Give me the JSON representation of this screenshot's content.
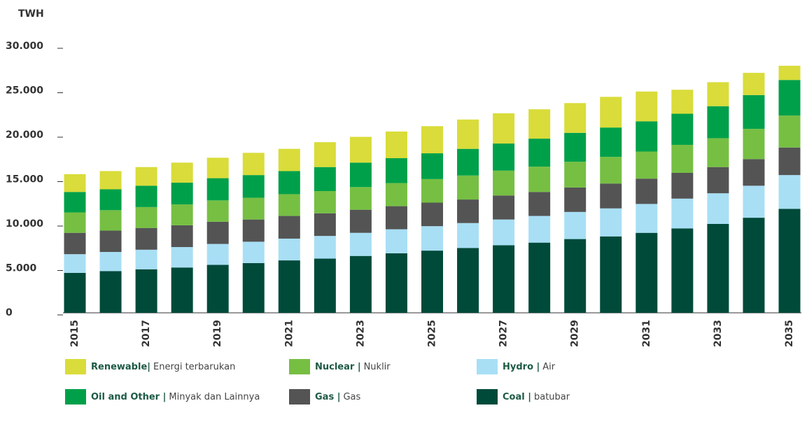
{
  "chart_data": {
    "type": "stacked_bar",
    "y_label": "TWH",
    "categories": [
      "2015",
      null,
      "2017",
      null,
      "2019",
      null,
      "2021",
      null,
      "2023",
      null,
      "2025",
      null,
      "2027",
      null,
      "2029",
      null,
      "2031",
      null,
      "2033",
      null,
      "2035"
    ],
    "series": [
      {
        "name": "Coal |",
        "name_local": "batubar",
        "color": "#004a3a",
        "values": [
          4500,
          4700,
          4900,
          5100,
          5400,
          5600,
          5900,
          6100,
          6400,
          6700,
          7000,
          7300,
          7600,
          7900,
          8300,
          8600,
          9000,
          9500,
          10000,
          10700,
          11700
        ]
      },
      {
        "name": "Hydro |",
        "name_local": "Air",
        "color": "#a8dff5",
        "values": [
          2100,
          2150,
          2200,
          2300,
          2350,
          2400,
          2450,
          2550,
          2600,
          2700,
          2750,
          2800,
          2900,
          3000,
          3050,
          3150,
          3250,
          3350,
          3450,
          3600,
          3800
        ]
      },
      {
        "name": "Gas |",
        "name_local": "Gas",
        "color": "#545454",
        "values": [
          2400,
          2400,
          2450,
          2450,
          2500,
          2500,
          2550,
          2550,
          2600,
          2600,
          2650,
          2650,
          2700,
          2700,
          2750,
          2800,
          2850,
          2900,
          2950,
          3000,
          3100
        ]
      },
      {
        "name": "Nuclear |",
        "name_local": "Nuklir",
        "color": "#76bf43",
        "values": [
          2300,
          2300,
          2350,
          2350,
          2400,
          2450,
          2450,
          2500,
          2550,
          2600,
          2650,
          2700,
          2800,
          2850,
          2900,
          3000,
          3050,
          3150,
          3250,
          3400,
          3600
        ]
      },
      {
        "name": "Oil and Other |",
        "name_local": "Minyak dan Lainnya",
        "color": "#00a04a",
        "values": [
          2300,
          2350,
          2400,
          2450,
          2500,
          2550,
          2600,
          2700,
          2750,
          2800,
          2900,
          3000,
          3050,
          3150,
          3250,
          3300,
          3400,
          3500,
          3600,
          3800,
          4000
        ]
      },
      {
        "name": "Renewable|",
        "name_local": "Energi terbarukan",
        "color": "#d9dc3a",
        "values": [
          2000,
          2050,
          2100,
          2250,
          2300,
          2500,
          2500,
          2800,
          2900,
          3000,
          3050,
          3300,
          3400,
          3300,
          3350,
          3450,
          3350,
          2700,
          2700,
          2500,
          1600
        ]
      }
    ],
    "ylim": [
      0,
      30000
    ],
    "yticks": [
      0,
      {
        "value": 5000,
        "label": "5.000"
      },
      {
        "value": 10000,
        "label": "10.000"
      },
      {
        "value": 15000,
        "label": "15.000"
      },
      {
        "value": 20000,
        "label": "20.000"
      },
      {
        "value": 25000,
        "label": "25.000"
      },
      {
        "value": 30000,
        "label": "30.000"
      }
    ]
  }
}
